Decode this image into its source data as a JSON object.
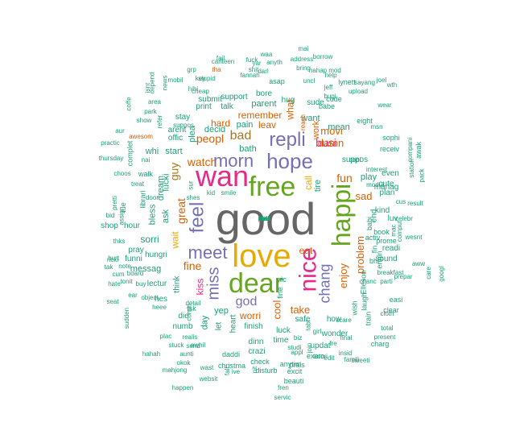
{
  "palette": {
    "gray": "#666666",
    "teal": "#1b9e77",
    "orange": "#d95f02",
    "purple": "#7570b3",
    "pink": "#e7298a",
    "green": "#66a61e",
    "gold": "#e6ab02",
    "brown": "#a6761d"
  },
  "words": [
    {
      "text": "good",
      "color": "gray"
    },
    {
      "text": "love",
      "color": "gold"
    },
    {
      "text": "wan",
      "color": "pink"
    },
    {
      "text": "free",
      "color": "green"
    },
    {
      "text": "dear",
      "color": "green"
    },
    {
      "text": "happi",
      "color": "green"
    },
    {
      "text": "hope",
      "color": "purple"
    },
    {
      "text": "nice",
      "color": "pink"
    },
    {
      "text": "repli",
      "color": "purple"
    },
    {
      "text": "morn",
      "color": "purple"
    },
    {
      "text": "meet",
      "color": "purple"
    },
    {
      "text": "feel",
      "color": "purple"
    },
    {
      "text": "miss",
      "color": "purple"
    },
    {
      "text": "chang",
      "color": "purple"
    },
    {
      "text": "god",
      "color": "purple"
    },
    {
      "text": "bad",
      "color": "brown"
    },
    {
      "text": "peopl",
      "color": "orange"
    },
    {
      "text": "watch",
      "color": "orange"
    },
    {
      "text": "guy",
      "color": "brown"
    },
    {
      "text": "fine",
      "color": "orange"
    },
    {
      "text": "great",
      "color": "orange"
    },
    {
      "text": "kiss",
      "color": "pink"
    },
    {
      "text": "busi",
      "color": "pink"
    },
    {
      "text": "movi",
      "color": "orange"
    },
    {
      "text": "damn",
      "color": "orange"
    },
    {
      "text": "fun",
      "color": "orange"
    },
    {
      "text": "sad",
      "color": "orange"
    },
    {
      "text": "enjoy",
      "color": "orange"
    },
    {
      "text": "problem",
      "color": "orange"
    },
    {
      "text": "cool",
      "color": "orange"
    },
    {
      "text": "take",
      "color": "orange"
    },
    {
      "text": "worri",
      "color": "orange"
    },
    {
      "text": "eat",
      "color": "orange"
    },
    {
      "text": "wait",
      "color": "gold"
    },
    {
      "text": "call",
      "color": "gold"
    },
    {
      "text": "tire",
      "color": "teal"
    },
    {
      "text": "remember",
      "color": "orange"
    },
    {
      "text": "hard",
      "color": "orange"
    },
    {
      "text": "leav",
      "color": "orange"
    },
    {
      "text": "what",
      "color": "orange"
    },
    {
      "text": "work",
      "color": "orange"
    },
    {
      "text": "sorri",
      "color": "teal"
    },
    {
      "text": "messag",
      "color": "teal"
    },
    {
      "text": "want",
      "color": "teal"
    },
    {
      "text": "bath",
      "color": "teal"
    },
    {
      "text": "pain",
      "color": "teal"
    },
    {
      "text": "parent",
      "color": "teal"
    },
    {
      "text": "decid",
      "color": "teal"
    },
    {
      "text": "play",
      "color": "teal"
    },
    {
      "text": "manag",
      "color": "teal"
    },
    {
      "text": "mean",
      "color": "teal"
    },
    {
      "text": "start",
      "color": "teal"
    },
    {
      "text": "ask",
      "color": "teal"
    },
    {
      "text": "bless",
      "color": "teal"
    },
    {
      "text": "dream",
      "color": "teal"
    },
    {
      "text": "whi",
      "color": "teal"
    },
    {
      "text": "offic",
      "color": "teal"
    },
    {
      "text": "hug",
      "color": "teal"
    },
    {
      "text": "bore",
      "color": "teal"
    },
    {
      "text": "talk",
      "color": "teal"
    },
    {
      "text": "stay",
      "color": "teal"
    },
    {
      "text": "print",
      "color": "teal"
    },
    {
      "text": "submit",
      "color": "teal"
    },
    {
      "text": "suppos",
      "color": "teal"
    },
    {
      "text": "kind",
      "color": "teal"
    },
    {
      "text": "end",
      "color": "teal"
    },
    {
      "text": "luv",
      "color": "teal"
    },
    {
      "text": "readi",
      "color": "teal"
    },
    {
      "text": "sound",
      "color": "teal"
    },
    {
      "text": "plan",
      "color": "teal"
    },
    {
      "text": "cute",
      "color": "teal"
    },
    {
      "text": "even",
      "color": "teal"
    },
    {
      "text": "hour",
      "color": "teal"
    },
    {
      "text": "shop",
      "color": "teal"
    },
    {
      "text": "pray",
      "color": "teal"
    },
    {
      "text": "funni",
      "color": "teal"
    },
    {
      "text": "hungri",
      "color": "teal"
    },
    {
      "text": "hes",
      "color": "teal"
    },
    {
      "text": "lectur",
      "color": "teal"
    },
    {
      "text": "think",
      "color": "teal"
    },
    {
      "text": "die",
      "color": "teal"
    },
    {
      "text": "numb",
      "color": "teal"
    },
    {
      "text": "yep",
      "color": "teal"
    },
    {
      "text": "day",
      "color": "teal"
    },
    {
      "text": "let",
      "color": "teal"
    },
    {
      "text": "heart",
      "color": "teal"
    },
    {
      "text": "finish",
      "color": "teal"
    },
    {
      "text": "dinn",
      "color": "teal"
    },
    {
      "text": "time",
      "color": "teal"
    },
    {
      "text": "safe",
      "color": "teal"
    },
    {
      "text": "how",
      "color": "teal"
    },
    {
      "text": "luck",
      "color": "teal"
    },
    {
      "text": "wonder",
      "color": "teal"
    },
    {
      "text": "updat",
      "color": "teal"
    },
    {
      "text": "crazi",
      "color": "teal"
    },
    {
      "text": "exam",
      "color": "teal"
    },
    {
      "text": "daddi",
      "color": "teal"
    },
    {
      "text": "check",
      "color": "teal"
    },
    {
      "text": "christma",
      "color": "teal"
    },
    {
      "text": "disturb",
      "color": "teal"
    },
    {
      "text": "excit",
      "color": "teal"
    },
    {
      "text": "prais",
      "color": "teal"
    },
    {
      "text": "anytim",
      "color": "teal"
    },
    {
      "text": "beauti",
      "color": "teal"
    },
    {
      "text": "fren",
      "color": "teal"
    },
    {
      "text": "servic",
      "color": "teal"
    },
    {
      "text": "sweeti",
      "color": "teal"
    },
    {
      "text": "websit",
      "color": "teal"
    },
    {
      "text": "happen",
      "color": "teal"
    },
    {
      "text": "mahjong",
      "color": "teal"
    },
    {
      "text": "hahah",
      "color": "teal"
    },
    {
      "text": "stuck",
      "color": "teal"
    },
    {
      "text": "awhil",
      "color": "teal"
    },
    {
      "text": "wast",
      "color": "teal"
    },
    {
      "text": "okok",
      "color": "teal"
    },
    {
      "text": "aunti",
      "color": "teal"
    },
    {
      "text": "plac",
      "color": "teal"
    },
    {
      "text": "heee",
      "color": "teal"
    },
    {
      "text": "detail",
      "color": "teal"
    },
    {
      "text": "comin",
      "color": "teal"
    },
    {
      "text": "realis",
      "color": "teal"
    },
    {
      "text": "ear",
      "color": "teal"
    },
    {
      "text": "object",
      "color": "teal"
    },
    {
      "text": "tonit",
      "color": "teal"
    },
    {
      "text": "buy",
      "color": "teal"
    },
    {
      "text": "cum",
      "color": "teal"
    },
    {
      "text": "hurt",
      "color": "teal"
    },
    {
      "text": "tak",
      "color": "teal"
    },
    {
      "text": "thks",
      "color": "teal"
    },
    {
      "text": "bid",
      "color": "teal"
    },
    {
      "text": "tue",
      "color": "teal"
    },
    {
      "text": "complet",
      "color": "teal"
    },
    {
      "text": "aur",
      "color": "teal"
    },
    {
      "text": "practic",
      "color": "teal"
    },
    {
      "text": "thursday",
      "color": "teal"
    },
    {
      "text": "coffe",
      "color": "teal"
    },
    {
      "text": "area",
      "color": "teal"
    },
    {
      "text": "park",
      "color": "teal"
    },
    {
      "text": "show",
      "color": "teal"
    },
    {
      "text": "depend",
      "color": "teal"
    },
    {
      "text": "news",
      "color": "teal"
    },
    {
      "text": "mobil",
      "color": "teal"
    },
    {
      "text": "grp",
      "color": "teal"
    },
    {
      "text": "key",
      "color": "teal"
    },
    {
      "text": "hihi",
      "color": "teal"
    },
    {
      "text": "stupid",
      "color": "teal"
    },
    {
      "text": "cheap",
      "color": "teal"
    },
    {
      "text": "fail",
      "color": "teal"
    },
    {
      "text": "yar",
      "color": "teal"
    },
    {
      "text": "fan",
      "color": "teal"
    },
    {
      "text": "nah",
      "color": "teal"
    },
    {
      "text": "darl",
      "color": "teal"
    },
    {
      "text": "asap",
      "color": "teal"
    },
    {
      "text": "anyth",
      "color": "teal"
    },
    {
      "text": "waa",
      "color": "teal"
    },
    {
      "text": "address",
      "color": "teal"
    },
    {
      "text": "mai",
      "color": "teal"
    },
    {
      "text": "borrow",
      "color": "teal"
    },
    {
      "text": "bring",
      "color": "teal"
    },
    {
      "text": "hahap",
      "color": "teal"
    },
    {
      "text": "help",
      "color": "teal"
    },
    {
      "text": "mod",
      "color": "teal"
    },
    {
      "text": "uncl",
      "color": "teal"
    },
    {
      "text": "jeff",
      "color": "teal"
    },
    {
      "text": "lynett",
      "color": "teal"
    },
    {
      "text": "code",
      "color": "teal"
    },
    {
      "text": "bugi",
      "color": "teal"
    },
    {
      "text": "upload",
      "color": "teal"
    },
    {
      "text": "sayang",
      "color": "teal"
    },
    {
      "text": "joel",
      "color": "teal"
    },
    {
      "text": "babe",
      "color": "teal"
    },
    {
      "text": "wear",
      "color": "teal"
    },
    {
      "text": "msn",
      "color": "teal"
    },
    {
      "text": "sophi",
      "color": "teal"
    },
    {
      "text": "receiv",
      "color": "teal"
    },
    {
      "text": "compani",
      "color": "teal"
    },
    {
      "text": "awak",
      "color": "teal"
    },
    {
      "text": "station",
      "color": "teal"
    },
    {
      "text": "pack",
      "color": "teal"
    },
    {
      "text": "result",
      "color": "teal"
    },
    {
      "text": "wesnt",
      "color": "teal"
    },
    {
      "text": "cus",
      "color": "teal"
    },
    {
      "text": "celebr",
      "color": "teal"
    },
    {
      "text": "comput",
      "color": "teal"
    },
    {
      "text": "prome",
      "color": "teal"
    },
    {
      "text": "mac",
      "color": "teal"
    },
    {
      "text": "book",
      "color": "teal"
    },
    {
      "text": "prepar",
      "color": "teal"
    },
    {
      "text": "aww",
      "color": "teal"
    },
    {
      "text": "breakfast",
      "color": "teal"
    },
    {
      "text": "parti",
      "color": "teal"
    },
    {
      "text": "easi",
      "color": "teal"
    },
    {
      "text": "clear",
      "color": "teal"
    },
    {
      "text": "cloth",
      "color": "teal"
    },
    {
      "text": "total",
      "color": "teal"
    },
    {
      "text": "present",
      "color": "teal"
    },
    {
      "text": "charg",
      "color": "teal"
    },
    {
      "text": "train",
      "color": "teal"
    },
    {
      "text": "laugh",
      "color": "teal"
    },
    {
      "text": "wish",
      "color": "teal"
    },
    {
      "text": "Elleson",
      "color": "teal"
    },
    {
      "text": "chanc",
      "color": "teal"
    },
    {
      "text": "scare",
      "color": "teal"
    },
    {
      "text": "insid",
      "color": "teal"
    },
    {
      "text": "famili",
      "color": "teal"
    },
    {
      "text": "final",
      "color": "teal"
    },
    {
      "text": "fre",
      "color": "teal"
    },
    {
      "text": "tutori",
      "color": "teal"
    },
    {
      "text": "bhi",
      "color": "teal"
    },
    {
      "text": "fin",
      "color": "teal"
    },
    {
      "text": "activ",
      "color": "teal"
    },
    {
      "text": "engin",
      "color": "teal"
    },
    {
      "text": "babi",
      "color": "teal"
    },
    {
      "text": "interest",
      "color": "teal"
    },
    {
      "text": "modul",
      "color": "teal"
    },
    {
      "text": "tabl",
      "color": "teal"
    },
    {
      "text": "girl",
      "color": "teal"
    },
    {
      "text": "copi",
      "color": "teal"
    },
    {
      "text": "kid",
      "color": "teal"
    },
    {
      "text": "smile",
      "color": "teal"
    },
    {
      "text": "shes",
      "color": "teal"
    },
    {
      "text": "suppos",
      "color": "teal"
    },
    {
      "text": "sur",
      "color": "teal"
    },
    {
      "text": "lucki",
      "color": "teal"
    },
    {
      "text": "door",
      "color": "teal"
    },
    {
      "text": "librari",
      "color": "teal"
    },
    {
      "text": "walk",
      "color": "teal"
    },
    {
      "text": "nai",
      "color": "teal"
    },
    {
      "text": "awesom",
      "color": "orange"
    },
    {
      "text": "treat",
      "color": "teal"
    },
    {
      "text": "choos",
      "color": "teal"
    },
    {
      "text": "assign",
      "color": "teal"
    },
    {
      "text": "pretti",
      "color": "teal"
    },
    {
      "text": "note",
      "color": "teal"
    },
    {
      "text": "ricki",
      "color": "teal"
    },
    {
      "text": "sudden",
      "color": "teal"
    },
    {
      "text": "seat",
      "color": "teal"
    },
    {
      "text": "hate",
      "color": "teal"
    },
    {
      "text": "googl",
      "color": "teal"
    },
    {
      "text": "care",
      "color": "teal"
    },
    {
      "text": "plea",
      "color": "teal"
    },
    {
      "text": "arent",
      "color": "teal"
    },
    {
      "text": "refer",
      "color": "teal"
    },
    {
      "text": "support",
      "color": "teal"
    },
    {
      "text": "sude",
      "color": "teal"
    },
    {
      "text": "reach",
      "color": "orange"
    },
    {
      "text": "tha",
      "color": "orange"
    },
    {
      "text": "canteen",
      "color": "teal"
    },
    {
      "text": "fuck",
      "color": "teal"
    },
    {
      "text": "shit",
      "color": "teal"
    },
    {
      "text": "fine",
      "color": "teal"
    },
    {
      "text": "nic",
      "color": "teal"
    },
    {
      "text": "wth",
      "color": "teal"
    },
    {
      "text": "eight",
      "color": "teal"
    },
    {
      "text": "send",
      "color": "teal"
    },
    {
      "text": "fall",
      "color": "teal"
    },
    {
      "text": "ive",
      "color": "teal"
    },
    {
      "text": "nit",
      "color": "teal"
    },
    {
      "text": "biz",
      "color": "teal"
    },
    {
      "text": "appl",
      "color": "teal"
    },
    {
      "text": "studi",
      "color": "teal"
    },
    {
      "text": "edit",
      "color": "teal"
    },
    {
      "text": "join",
      "color": "teal"
    },
    {
      "text": "board",
      "color": "teal"
    },
    {
      "text": "isnt",
      "color": "teal"
    },
    {
      "text": "tsk",
      "color": "teal"
    },
    {
      "text": "sit",
      "color": "teal"
    },
    {
      "text": "hell",
      "color": "teal"
    },
    {
      "text": "idea",
      "color": "teal"
    },
    {
      "text": "lie",
      "color": "teal"
    },
    {
      "text": "pool",
      "color": "teal"
    },
    {
      "text": "bye",
      "color": "teal"
    }
  ]
}
